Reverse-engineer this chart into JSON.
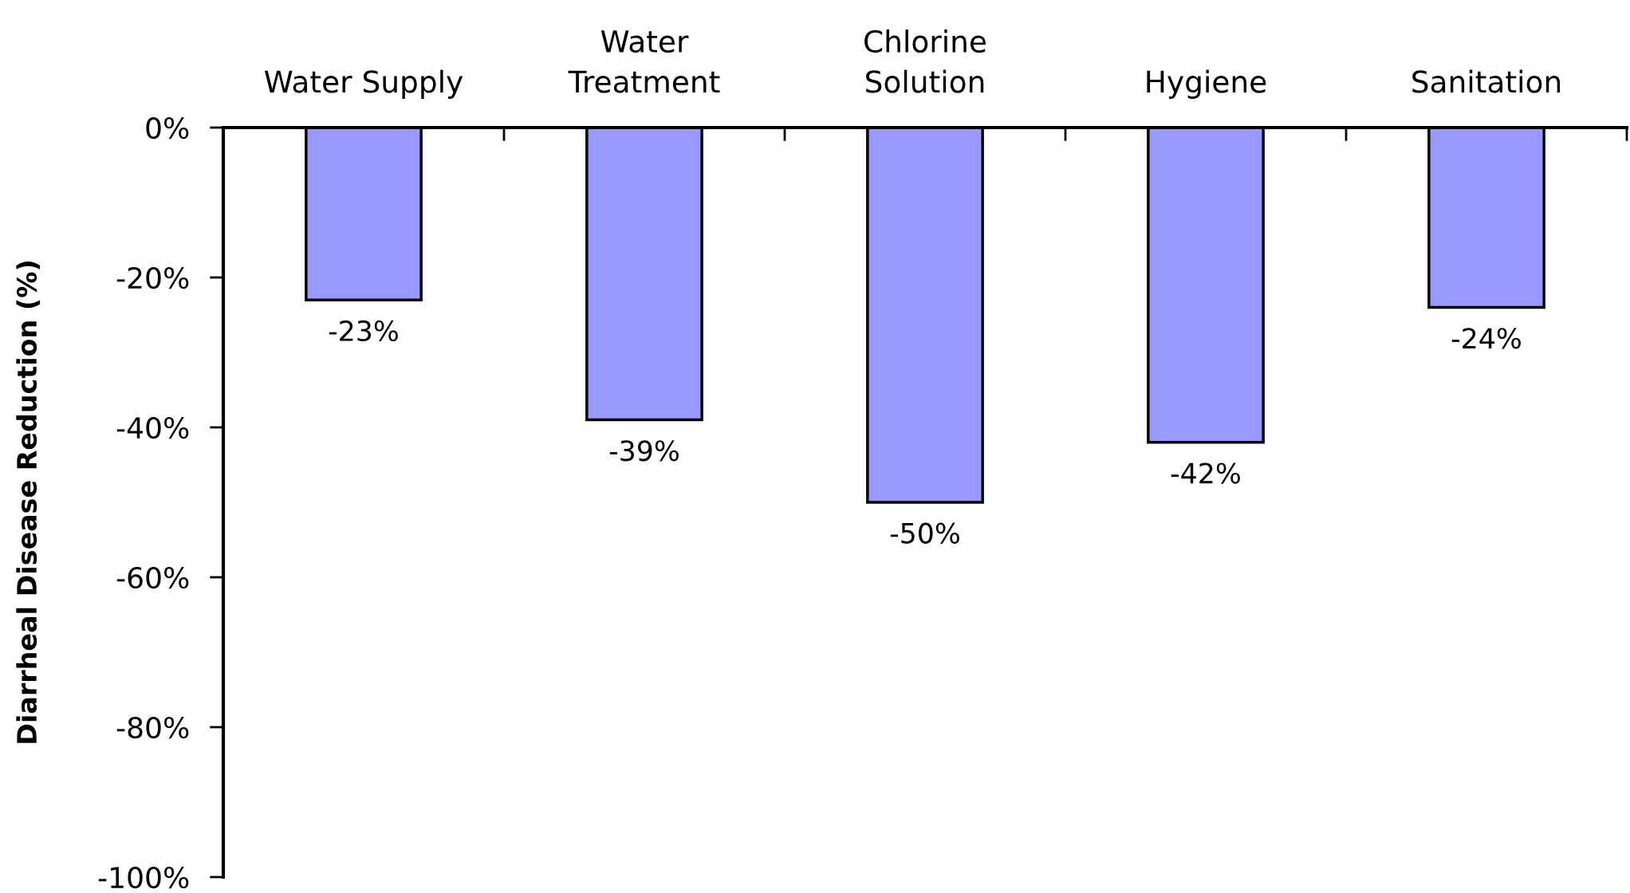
{
  "chart_data": {
    "type": "bar",
    "categories": [
      "Water Supply",
      "Water\nTreatment",
      "Chlorine\nSolution",
      "Hygiene",
      "Sanitation"
    ],
    "values": [
      -23,
      -39,
      -50,
      -42,
      -24
    ],
    "color": "#9999ff",
    "value_labels": [
      "-23%",
      "-39%",
      "-50%",
      "-42%",
      "-24%"
    ],
    "ylabel": "Diarrheal Disease Reduction (%)",
    "ylim": [
      -100,
      0
    ],
    "yticks": [
      {
        "value": 0,
        "label": "0%"
      },
      {
        "value": -20,
        "label": "-20%"
      },
      {
        "value": -40,
        "label": "-40%"
      },
      {
        "value": -60,
        "label": "-60%"
      },
      {
        "value": -80,
        "label": "-80%"
      },
      {
        "value": -100,
        "label": "-100%"
      }
    ],
    "grid": false,
    "legend": false
  }
}
